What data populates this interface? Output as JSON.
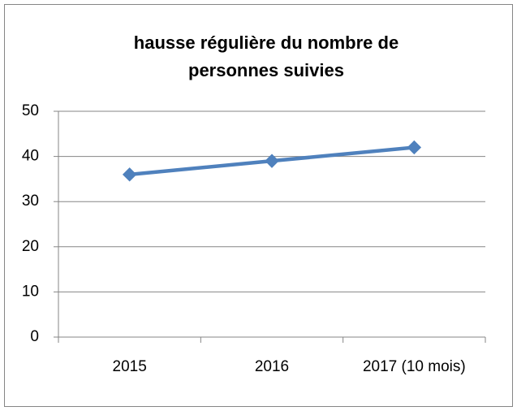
{
  "chart_data": {
    "type": "line",
    "title": "hausse régulière du nombre de personnes suivies",
    "categories": [
      "2015",
      "2016",
      "2017 (10 mois)"
    ],
    "series": [
      {
        "name": "personnes suivies",
        "color": "#4f81bd",
        "values": [
          36,
          39,
          42
        ]
      }
    ],
    "ylim": [
      0,
      50
    ],
    "yticks": [
      0,
      10,
      20,
      30,
      40,
      50
    ],
    "grid": true
  }
}
